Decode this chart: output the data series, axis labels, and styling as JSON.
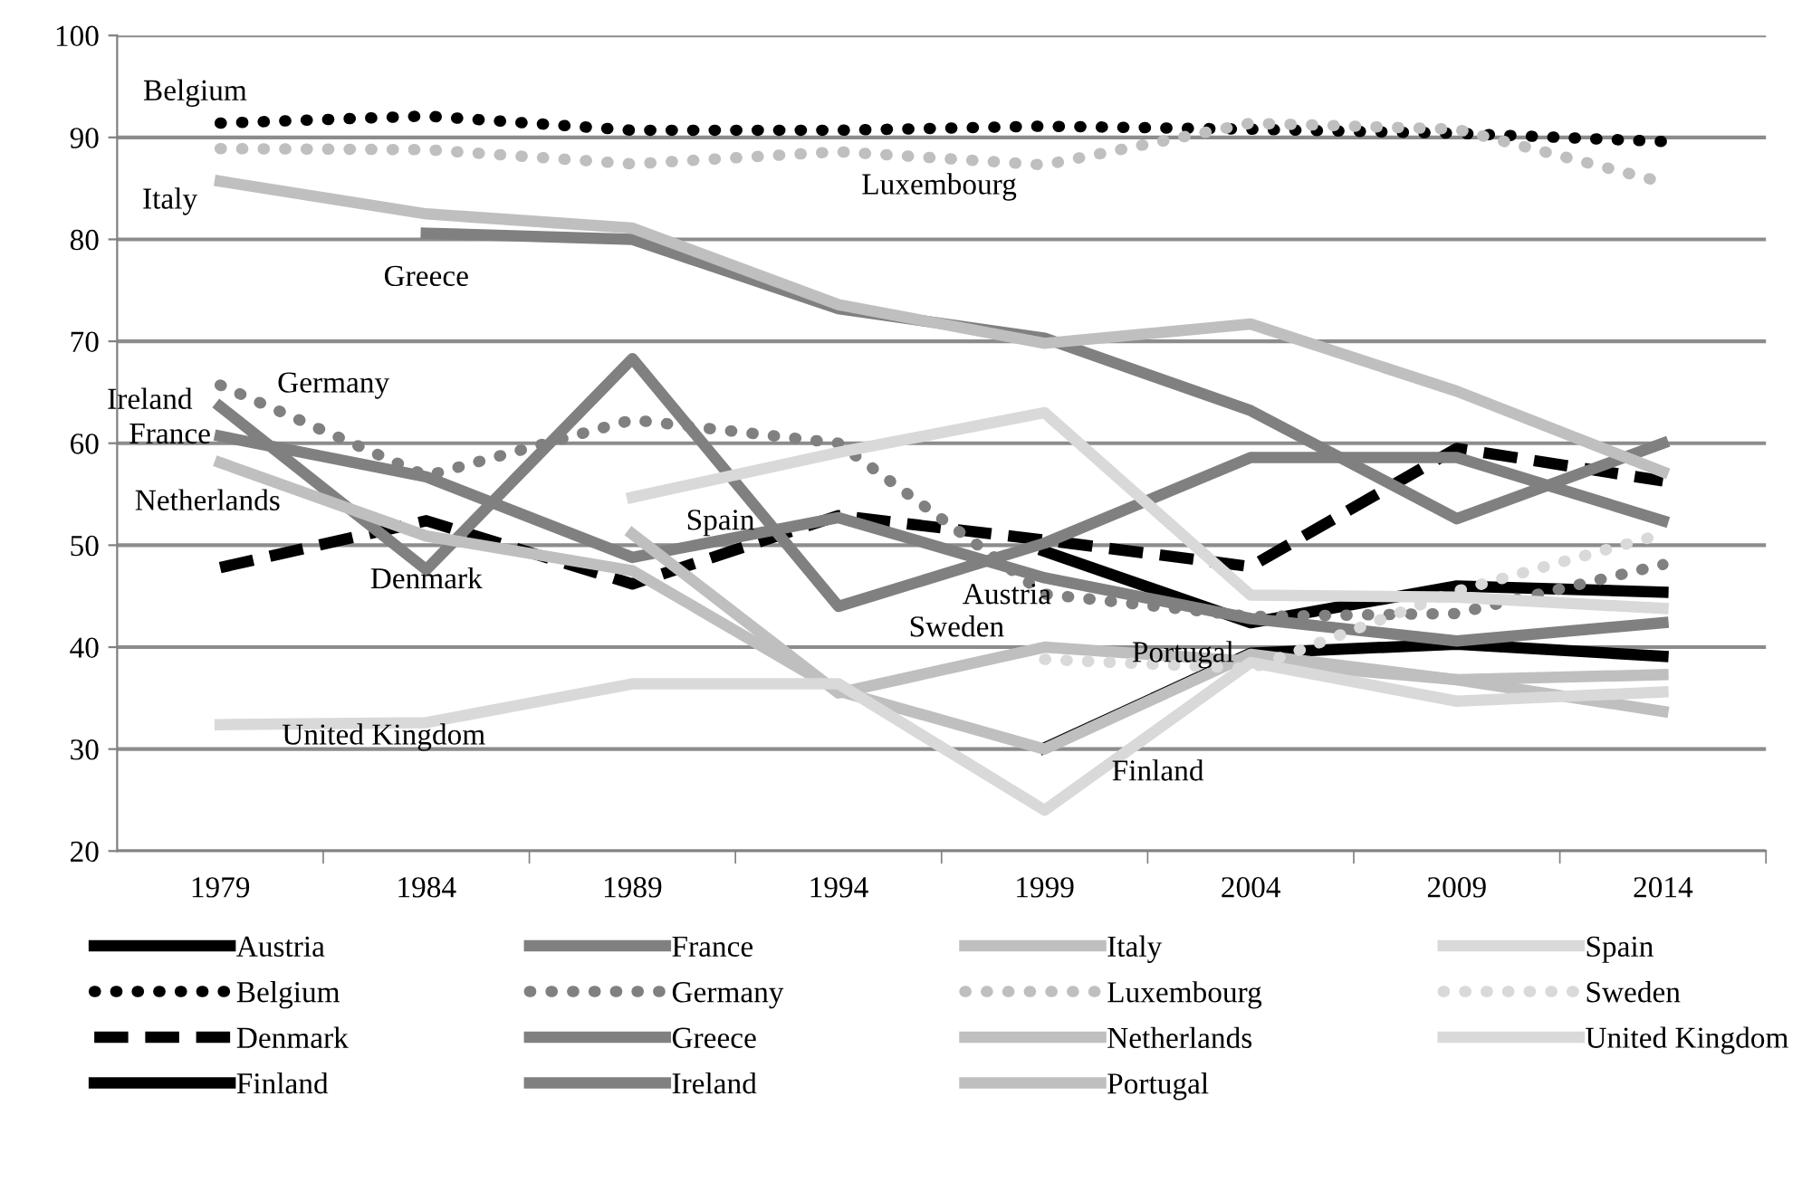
{
  "chart_data": {
    "type": "line",
    "categories": [
      "1979",
      "1984",
      "1989",
      "1994",
      "1999",
      "2004",
      "2009",
      "2014"
    ],
    "ylim": [
      20,
      100
    ],
    "yticks": [
      20,
      30,
      40,
      50,
      60,
      70,
      80,
      90,
      100
    ],
    "grid": "y",
    "legend": "bottom",
    "marker": "none",
    "series": [
      {
        "name": "Austria",
        "color": "#000000",
        "line_style": "solid",
        "values": [
          null,
          null,
          null,
          null,
          49.4,
          42.4,
          46,
          45.4
        ]
      },
      {
        "name": "Belgium",
        "color": "#000000",
        "line_style": "dotted",
        "values": [
          91.4,
          92.1,
          90.7,
          90.7,
          91.1,
          90.8,
          90.4,
          89.6
        ]
      },
      {
        "name": "Denmark",
        "color": "#000000",
        "line_style": "dashed",
        "values": [
          47.8,
          52.4,
          46.2,
          52.9,
          50.5,
          47.9,
          59.5,
          56.3
        ]
      },
      {
        "name": "Finland",
        "color": "#000000",
        "line_style": "solid",
        "values": [
          null,
          null,
          null,
          null,
          30.1,
          39.4,
          40.3,
          39.1
        ]
      },
      {
        "name": "France",
        "color": "#808080",
        "line_style": "solid",
        "values": [
          60.7,
          56.7,
          48.8,
          52.7,
          46.8,
          42.8,
          40.6,
          42.4
        ]
      },
      {
        "name": "Germany",
        "color": "#808080",
        "line_style": "dotted",
        "values": [
          65.7,
          56.8,
          62.3,
          60,
          45.2,
          43,
          43.3,
          48.1
        ]
      },
      {
        "name": "Greece",
        "color": "#808080",
        "line_style": "solid",
        "values": [
          null,
          80.6,
          80,
          73.2,
          70.3,
          63.2,
          52.6,
          60
        ]
      },
      {
        "name": "Ireland",
        "color": "#808080",
        "line_style": "solid",
        "values": [
          63.6,
          47.6,
          68.3,
          44,
          50.2,
          58.6,
          58.6,
          52.4
        ]
      },
      {
        "name": "Italy",
        "color": "#bfbfbf",
        "line_style": "solid",
        "values": [
          85.7,
          82.5,
          81.1,
          73.6,
          69.8,
          71.7,
          65.1,
          57.2
        ]
      },
      {
        "name": "Luxembourg",
        "color": "#bfbfbf",
        "line_style": "dotted",
        "values": [
          88.9,
          88.8,
          87.4,
          88.6,
          87.3,
          91.4,
          90.8,
          85.6
        ]
      },
      {
        "name": "Netherlands",
        "color": "#bfbfbf",
        "line_style": "solid",
        "values": [
          58.1,
          50.9,
          47.5,
          35.7,
          30,
          39.3,
          36.8,
          37.3
        ]
      },
      {
        "name": "Portugal",
        "color": "#bfbfbf",
        "line_style": "solid",
        "values": [
          null,
          null,
          51.1,
          35.5,
          40,
          38.6,
          36.8,
          33.7
        ]
      },
      {
        "name": "Spain",
        "color": "#d9d9d9",
        "line_style": "solid",
        "values": [
          null,
          null,
          54.7,
          59.1,
          63,
          45.1,
          44.9,
          43.8
        ]
      },
      {
        "name": "Sweden",
        "color": "#d9d9d9",
        "line_style": "dotted",
        "values": [
          null,
          null,
          null,
          null,
          38.8,
          37.9,
          45.5,
          51.1
        ]
      },
      {
        "name": "United Kingdom",
        "color": "#d9d9d9",
        "line_style": "solid",
        "values": [
          32.4,
          32.6,
          36.4,
          36.4,
          24,
          38.5,
          34.7,
          35.6
        ]
      }
    ],
    "annotations": [
      {
        "text": "Belgium",
        "x": "1979",
        "y": 91.4
      },
      {
        "text": "Luxembourg",
        "x": "1994",
        "y": 88.6
      },
      {
        "text": "Italy",
        "x": "1979",
        "y": 85.7
      },
      {
        "text": "Greece",
        "x": "1984",
        "y": 80.6
      },
      {
        "text": "Ireland",
        "x": "1979",
        "y": 63.6
      },
      {
        "text": "Germany",
        "x": "1979",
        "y": 65.7
      },
      {
        "text": "France",
        "x": "1979",
        "y": 60.7
      },
      {
        "text": "Netherlands",
        "x": "1979",
        "y": 58.1
      },
      {
        "text": "Denmark",
        "x": "1984",
        "y": 52.4
      },
      {
        "text": "Spain",
        "x": "1989",
        "y": 54.7
      },
      {
        "text": "Austria",
        "x": "1999",
        "y": 49.4
      },
      {
        "text": "Sweden",
        "x": "1999",
        "y": 38.8
      },
      {
        "text": "Portugal",
        "x": "1999",
        "y": 40
      },
      {
        "text": "Finland",
        "x": "1999",
        "y": 30.1
      },
      {
        "text": "United Kingdom",
        "x": "1979",
        "y": 32.4
      }
    ]
  }
}
